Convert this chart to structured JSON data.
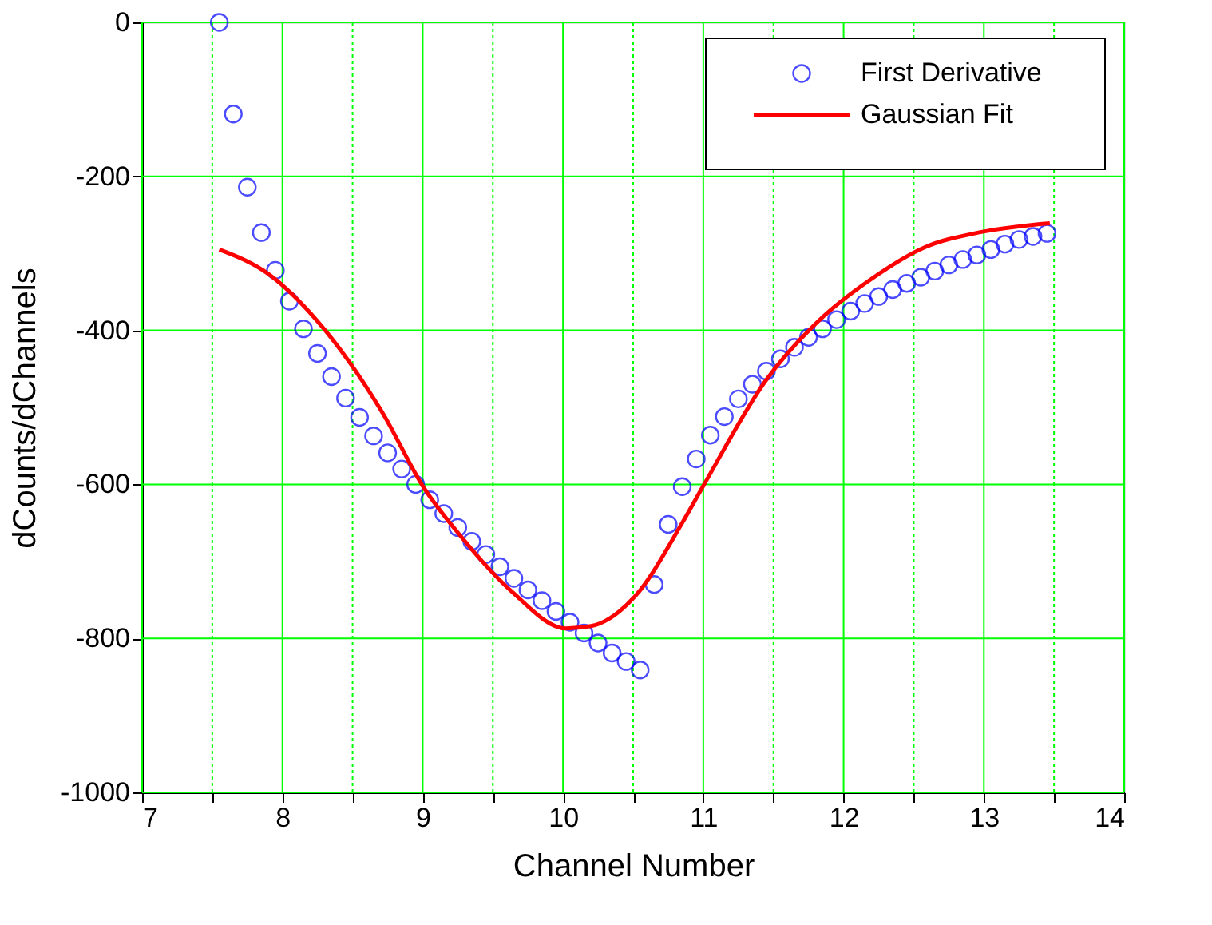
{
  "chart_data": {
    "type": "scatter",
    "xlabel": "Channel Number",
    "ylabel": "dCounts/dChannels",
    "xlim": [
      7,
      14
    ],
    "ylim": [
      -1000,
      0
    ],
    "xticks": [
      7,
      {
        "value": 7.5,
        "label": null
      },
      8,
      {
        "value": 8.5,
        "label": null
      },
      9,
      {
        "value": 9.5,
        "label": null
      },
      10,
      {
        "value": 10.5,
        "label": null
      },
      11,
      {
        "value": 11.5,
        "label": null
      },
      12,
      {
        "value": 12.5,
        "label": null
      },
      13,
      {
        "value": 13.5,
        "label": null
      },
      14
    ],
    "yticks": [
      -1000,
      -800,
      -600,
      -400,
      -200,
      0
    ],
    "grid": true,
    "legend": "top right",
    "series": [
      {
        "name": "First Derivative",
        "color": "#0000ff",
        "marker": "circle",
        "x": [
          7.55,
          7.65,
          7.75,
          7.85,
          7.95,
          8.05,
          8.15,
          8.25,
          8.35,
          8.45,
          8.55,
          8.65,
          8.75,
          8.85,
          8.95,
          9.05,
          9.15,
          9.25,
          9.35,
          9.45,
          9.55,
          9.65,
          9.75,
          9.85,
          9.95,
          10.05,
          10.15,
          10.25,
          10.35,
          10.45,
          10.55,
          10.65,
          10.75,
          10.85,
          10.95,
          11.05,
          11.15,
          11.25,
          11.35,
          11.45,
          11.55,
          11.65,
          11.75,
          11.85,
          11.95,
          12.05,
          12.15,
          12.25,
          12.35,
          12.45,
          12.55,
          12.65,
          12.75,
          12.85,
          12.95,
          13.05,
          13.15,
          13.25,
          13.35,
          13.45
        ],
        "values": [
          0,
          -119,
          -214,
          -273,
          -322,
          -362,
          -398,
          -430,
          -460,
          -488,
          -513,
          -537,
          -559,
          -580,
          -600,
          -620,
          -638,
          -656,
          -674,
          -691,
          -707,
          -722,
          -737,
          -751,
          -765,
          -779,
          -793,
          -806,
          -819,
          -830,
          -841,
          -730,
          -652,
          -603,
          -567,
          -536,
          -512,
          -489,
          -470,
          -453,
          -437,
          -422,
          -409,
          -398,
          -386,
          -375,
          -365,
          -356,
          -347,
          -339,
          -331,
          -323,
          -315,
          -308,
          -302,
          -295,
          -288,
          -282,
          -278,
          -274
        ]
      },
      {
        "name": "Gaussian Fit",
        "color": "#ff0000",
        "type": "line",
        "line_style": "solid",
        "x": [
          7.55,
          7.91,
          8.25,
          8.72,
          9.0,
          9.27,
          9.64,
          10.02,
          10.2,
          10.51,
          10.85,
          11.0,
          11.45,
          11.82,
          12.2,
          12.58,
          12.96,
          13.47
        ],
        "values": [
          -295,
          -328,
          -388,
          -509,
          -602,
          -667,
          -740,
          -787,
          -784,
          -746,
          -650,
          -602,
          -464,
          -388,
          -333,
          -292,
          -273,
          -261
        ]
      }
    ]
  }
}
